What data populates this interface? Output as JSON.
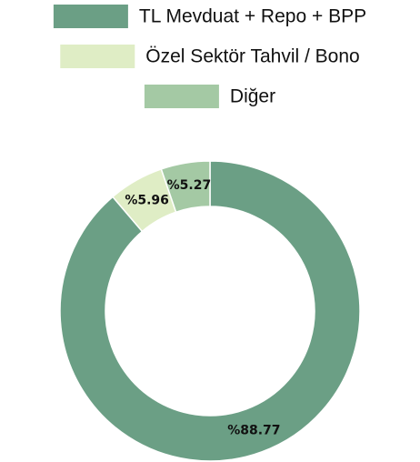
{
  "chart_data": {
    "type": "donut",
    "categories": [
      "TL Mevduat + Repo + BPP",
      "Özel Sektör Tahvil / Bono",
      "Diğer"
    ],
    "values": [
      88.77,
      5.96,
      5.27
    ],
    "value_labels": [
      "%88.77",
      "%5.96",
      "%5.27"
    ],
    "colors": [
      "#6b9f85",
      "#dfedc5",
      "#a4c9a4"
    ],
    "legend": "top"
  }
}
